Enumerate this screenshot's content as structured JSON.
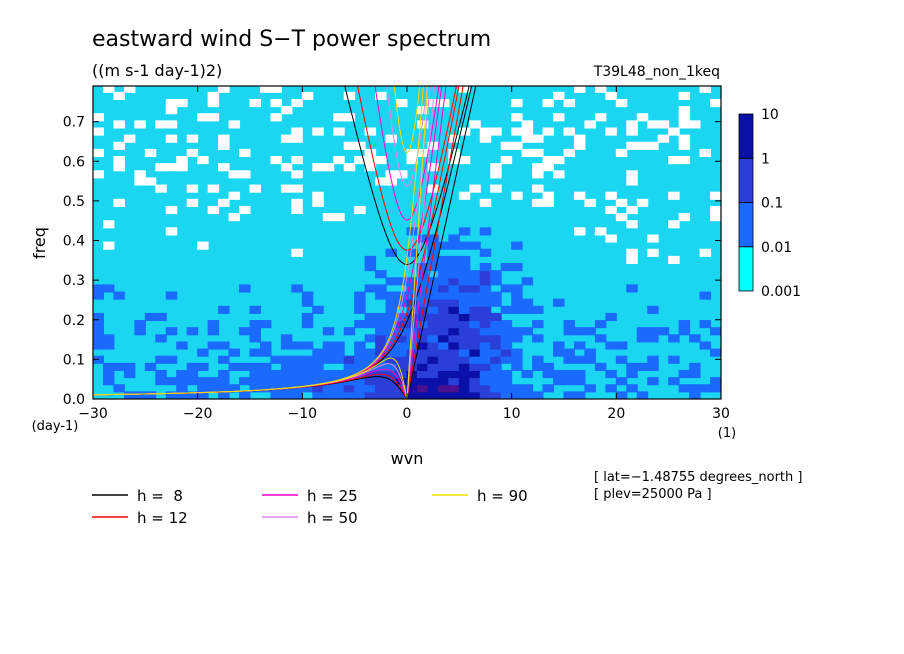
{
  "chart_data": {
    "type": "heatmap",
    "title": "eastward wind S−T power spectrum",
    "subtitle": "((m s-1 day-1)2)",
    "run_label": "T39L48_non_1keq",
    "xlabel": "wvn",
    "ylabel": "freq",
    "x_unit": "(1)",
    "y_unit": "(day-1)",
    "xlim": [
      -30,
      30
    ],
    "ylim": [
      0,
      0.79
    ],
    "x_ticks": [
      -30,
      -20,
      -10,
      0,
      10,
      20,
      30
    ],
    "x_tick_labels": [
      "−30",
      "−20",
      "−10",
      "0",
      "10",
      "20",
      "30"
    ],
    "y_ticks": [
      0,
      0.1,
      0.2,
      0.3,
      0.4,
      0.5,
      0.6,
      0.7
    ],
    "y_tick_labels": [
      "0.0",
      "0.1",
      "0.2",
      "0.3",
      "0.4",
      "0.5",
      "0.6",
      "0.7"
    ],
    "colorbar": {
      "levels": [
        "0.001",
        "0.01",
        "0.1",
        "1",
        "10"
      ],
      "colors": [
        "#00ffff",
        "#1a6aff",
        "#2a3fd8",
        "#0a10a8",
        "#4a1090"
      ]
    },
    "background_level_color": "#1ad6f0",
    "series": [
      {
        "name": "h =  8",
        "color": "#000000",
        "equivalent_depth": 8
      },
      {
        "name": "h = 12",
        "color": "#ff0000",
        "equivalent_depth": 12
      },
      {
        "name": "h = 25",
        "color": "#ff00cc",
        "equivalent_depth": 25
      },
      {
        "name": "h = 50",
        "color": "#dd88ee",
        "equivalent_depth": 50
      },
      {
        "name": "h = 90",
        "color": "#eedd00",
        "equivalent_depth": 90
      }
    ],
    "annotations": [
      "[ lat=−1.48755 degrees_north ]",
      "[ plev=25000 Pa ]"
    ],
    "grid": false,
    "legend_position": "bottom-left"
  }
}
